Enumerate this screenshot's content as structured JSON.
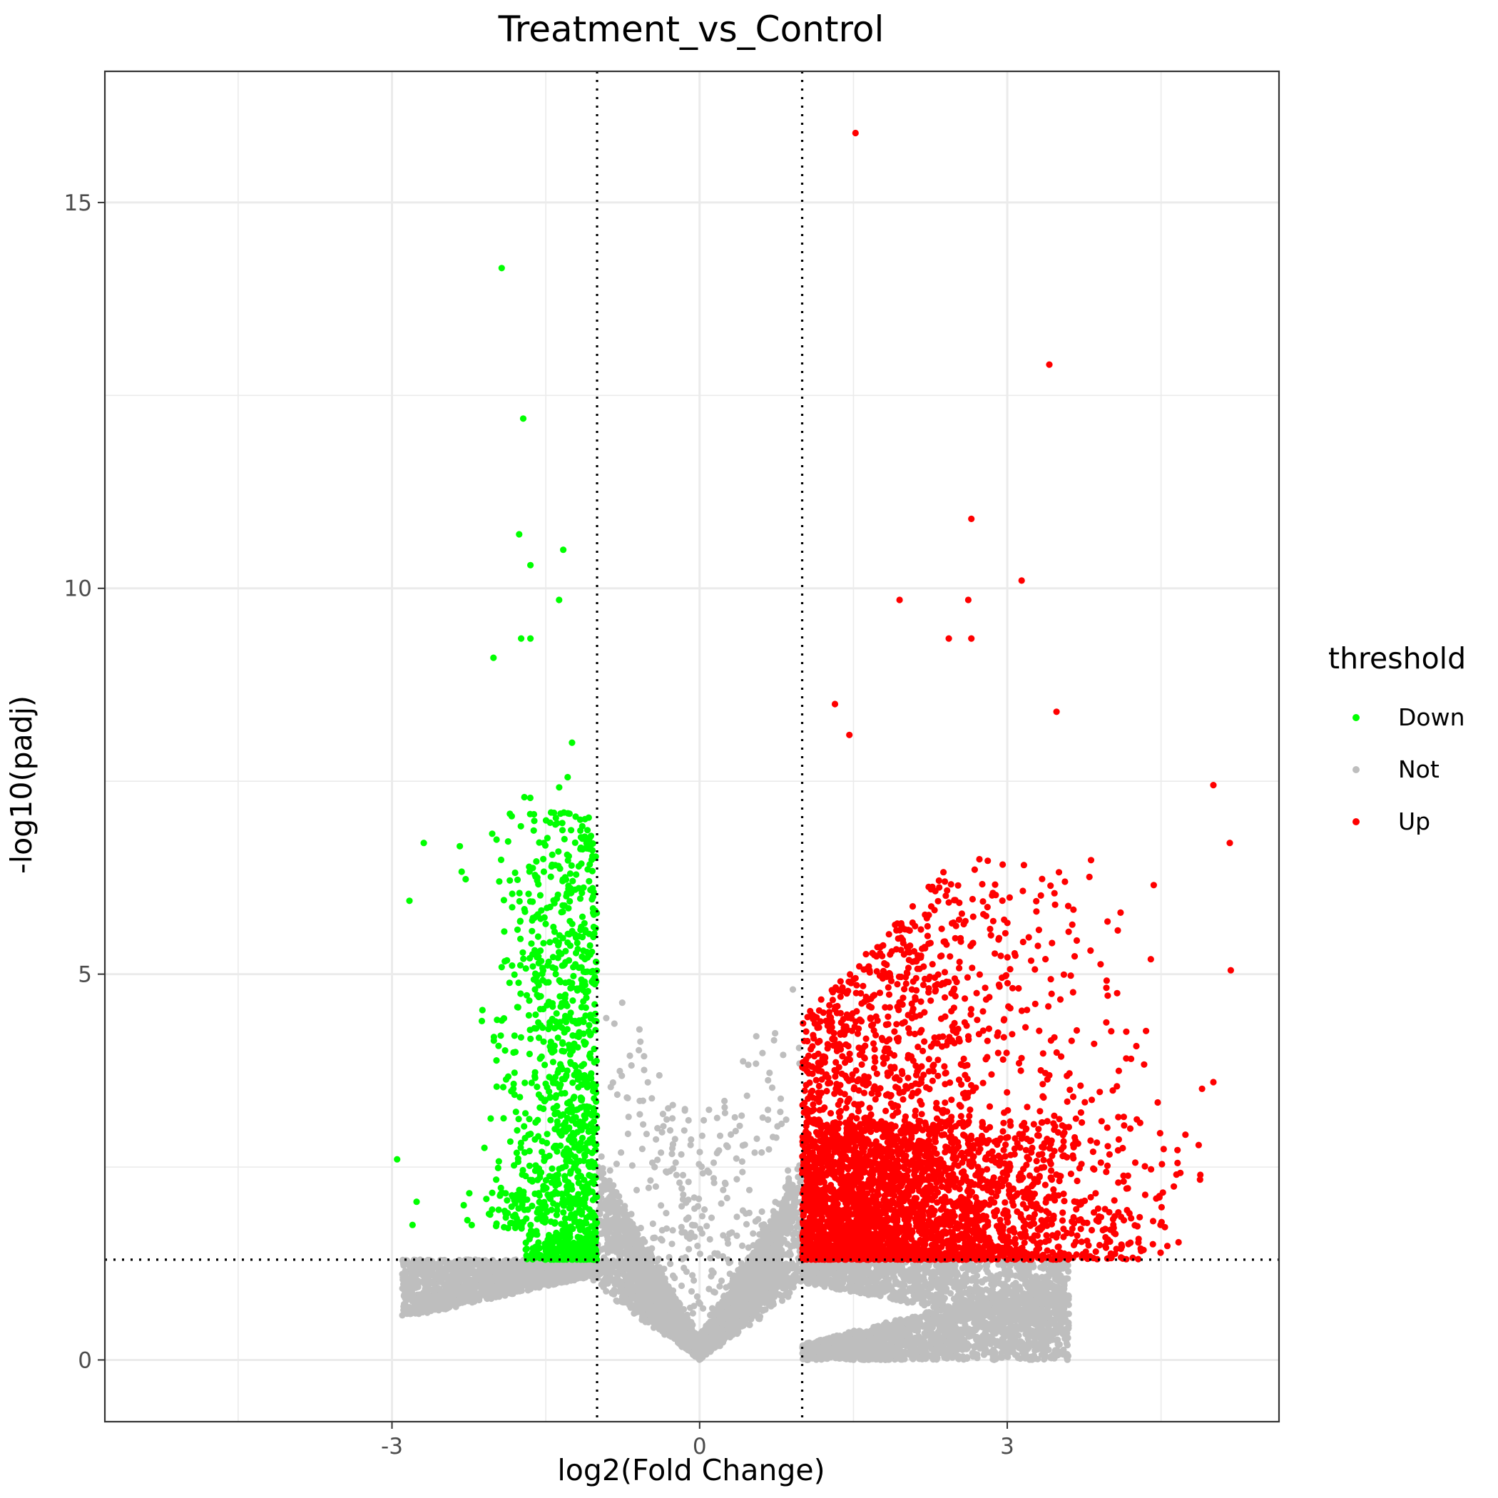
{
  "chart_data": {
    "type": "scatter",
    "title": "Treatment_vs_Control",
    "xlabel": "log2(Fold Change)",
    "ylabel": "-log10(padj)",
    "xlim": [
      -5.8,
      5.65
    ],
    "ylim": [
      -0.8,
      16.7
    ],
    "x_ticks": [
      -3,
      0,
      3
    ],
    "x_tick_labels": [
      "-3",
      "0",
      "3"
    ],
    "y_ticks": [
      0,
      5,
      10,
      15
    ],
    "y_tick_labels": [
      "0",
      "5",
      "10",
      "15"
    ],
    "x_minor_grid": [
      -4.5,
      -1.5,
      1.5,
      4.5
    ],
    "y_minor_grid": [
      2.5,
      7.5,
      12.5
    ],
    "grid": true,
    "thresholds": {
      "log2fc": [
        -1,
        1
      ],
      "neg_log10_padj": 1.3
    },
    "legend": {
      "title": "threshold",
      "position": "right",
      "entries": [
        {
          "label": "Down",
          "color": "#00ff00"
        },
        {
          "label": "Not",
          "color": "#bebebe"
        },
        {
          "label": "Up",
          "color": "#ff0000"
        }
      ]
    },
    "colors": {
      "Down": "#00ff00",
      "Not": "#bebebe",
      "Up": "#ff0000"
    },
    "notable_points": [
      {
        "x": 1.52,
        "y": 15.9,
        "group": "Up"
      },
      {
        "x": 3.41,
        "y": 12.9,
        "group": "Up"
      },
      {
        "x": 2.65,
        "y": 10.9,
        "group": "Up"
      },
      {
        "x": 3.14,
        "y": 10.1,
        "group": "Up"
      },
      {
        "x": 1.95,
        "y": 9.85,
        "group": "Up"
      },
      {
        "x": 2.62,
        "y": 9.85,
        "group": "Up"
      },
      {
        "x": 2.43,
        "y": 9.35,
        "group": "Up"
      },
      {
        "x": 2.65,
        "y": 9.35,
        "group": "Up"
      },
      {
        "x": 1.32,
        "y": 8.5,
        "group": "Up"
      },
      {
        "x": 3.48,
        "y": 8.4,
        "group": "Up"
      },
      {
        "x": 1.46,
        "y": 8.1,
        "group": "Up"
      },
      {
        "x": 5.01,
        "y": 7.45,
        "group": "Up"
      },
      {
        "x": 5.17,
        "y": 6.7,
        "group": "Up"
      },
      {
        "x": 5.18,
        "y": 5.05,
        "group": "Up"
      },
      {
        "x": 5.01,
        "y": 3.6,
        "group": "Up"
      },
      {
        "x": 4.42,
        "y": 1.5,
        "group": "Up"
      },
      {
        "x": -1.93,
        "y": 14.15,
        "group": "Down"
      },
      {
        "x": -1.72,
        "y": 12.2,
        "group": "Down"
      },
      {
        "x": -1.76,
        "y": 10.7,
        "group": "Down"
      },
      {
        "x": -1.33,
        "y": 10.5,
        "group": "Down"
      },
      {
        "x": -1.65,
        "y": 10.3,
        "group": "Down"
      },
      {
        "x": -1.37,
        "y": 9.85,
        "group": "Down"
      },
      {
        "x": -1.74,
        "y": 9.35,
        "group": "Down"
      },
      {
        "x": -1.65,
        "y": 9.35,
        "group": "Down"
      },
      {
        "x": -2.01,
        "y": 9.1,
        "group": "Down"
      },
      {
        "x": -2.69,
        "y": 6.7,
        "group": "Down"
      },
      {
        "x": -2.83,
        "y": 5.95,
        "group": "Down"
      },
      {
        "x": -2.95,
        "y": 2.6,
        "group": "Down"
      },
      {
        "x": -2.76,
        "y": 2.05,
        "group": "Down"
      },
      {
        "x": -2.8,
        "y": 1.75,
        "group": "Down"
      }
    ],
    "series": [
      {
        "name": "Down",
        "group": "Down",
        "count": 1200,
        "x_range": [
          -2.3,
          -1.0
        ],
        "y_range": [
          1.3,
          7.6
        ]
      },
      {
        "name": "Not",
        "group": "Not",
        "count": 9000,
        "x_range": [
          -3.0,
          3.6
        ],
        "y_range": [
          0,
          6.1
        ]
      },
      {
        "name": "Up",
        "group": "Up",
        "count": 3800,
        "x_range": [
          1.0,
          4.9
        ],
        "y_range": [
          1.3,
          8.0
        ]
      }
    ]
  }
}
